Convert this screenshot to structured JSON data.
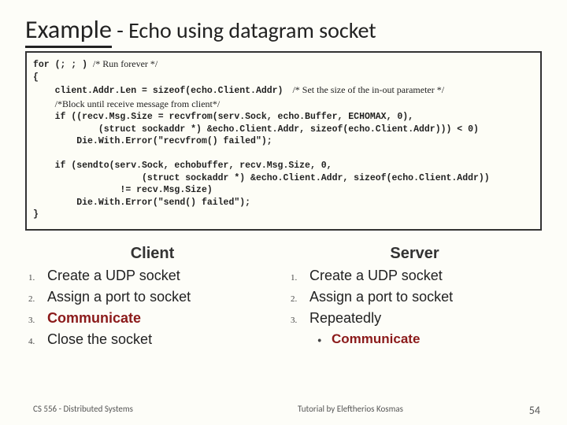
{
  "title": {
    "main": "Example",
    "sub": " - Echo using datagram socket"
  },
  "code": {
    "lines": [
      {
        "indent": 0,
        "segs": [
          {
            "t": "for (; ; ) ",
            "b": true
          },
          {
            "t": "/* Run forever */",
            "cls": "comment"
          }
        ]
      },
      {
        "indent": 0,
        "segs": [
          {
            "t": "{",
            "b": true
          }
        ]
      },
      {
        "indent": 1,
        "segs": [
          {
            "t": "client.Addr.Len = sizeof(echo.Client.Addr)",
            "b": true
          },
          {
            "t": "    /* Set the size of the in-out parameter */",
            "cls": "comment"
          }
        ]
      },
      {
        "indent": 1,
        "segs": [
          {
            "t": "/*Block until receive message from client*/",
            "cls": "comment"
          }
        ]
      },
      {
        "indent": 1,
        "segs": [
          {
            "t": "if ((recv.Msg.Size = recvfrom(serv.Sock, echo.Buffer, ECHOMAX, 0),",
            "b": true
          }
        ]
      },
      {
        "indent": 3,
        "segs": [
          {
            "t": "(struct sockaddr *) &echo.Client.Addr, sizeof(echo.Client.Addr))) < 0)",
            "b": true
          }
        ]
      },
      {
        "indent": 2,
        "segs": [
          {
            "t": "Die.With.Error(\"recvfrom() failed\");",
            "b": true
          }
        ]
      },
      {
        "indent": 0,
        "segs": [
          {
            "t": " "
          }
        ]
      },
      {
        "indent": 1,
        "segs": [
          {
            "t": "if (sendto(serv.Sock, echobuffer, recv.Msg.Size, 0,",
            "b": true
          }
        ]
      },
      {
        "indent": 5,
        "segs": [
          {
            "t": "(struct sockaddr *) &echo.Client.Addr, sizeof(echo.Client.Addr))",
            "b": true
          }
        ]
      },
      {
        "indent": 4,
        "segs": [
          {
            "t": "!= recv.Msg.Size)",
            "b": true
          }
        ]
      },
      {
        "indent": 2,
        "segs": [
          {
            "t": "Die.With.Error(\"send() failed\");",
            "b": true
          }
        ]
      },
      {
        "indent": 0,
        "segs": [
          {
            "t": "}",
            "b": true
          }
        ]
      }
    ],
    "indent_unit": "    "
  },
  "columns": {
    "left": {
      "title": "Client",
      "items": [
        {
          "n": "1.",
          "text": "Create a UDP socket",
          "hl": false
        },
        {
          "n": "2.",
          "text": "Assign a port to socket",
          "hl": false
        },
        {
          "n": "3.",
          "text": "Communicate",
          "hl": true
        },
        {
          "n": "4.",
          "text": "Close the socket",
          "hl": false
        }
      ]
    },
    "right": {
      "title": "Server",
      "items": [
        {
          "n": "1.",
          "text": "Create a UDP socket",
          "hl": false
        },
        {
          "n": "2.",
          "text": "Assign a port to socket",
          "hl": false
        },
        {
          "n": "3.",
          "text": "Repeatedly",
          "hl": false
        }
      ],
      "sub": {
        "bullet": "•",
        "text": "Communicate"
      }
    }
  },
  "footer": {
    "left": "CS 556 - Distributed Systems",
    "center": "Tutorial by Eleftherios Kosmas",
    "page": "54"
  }
}
